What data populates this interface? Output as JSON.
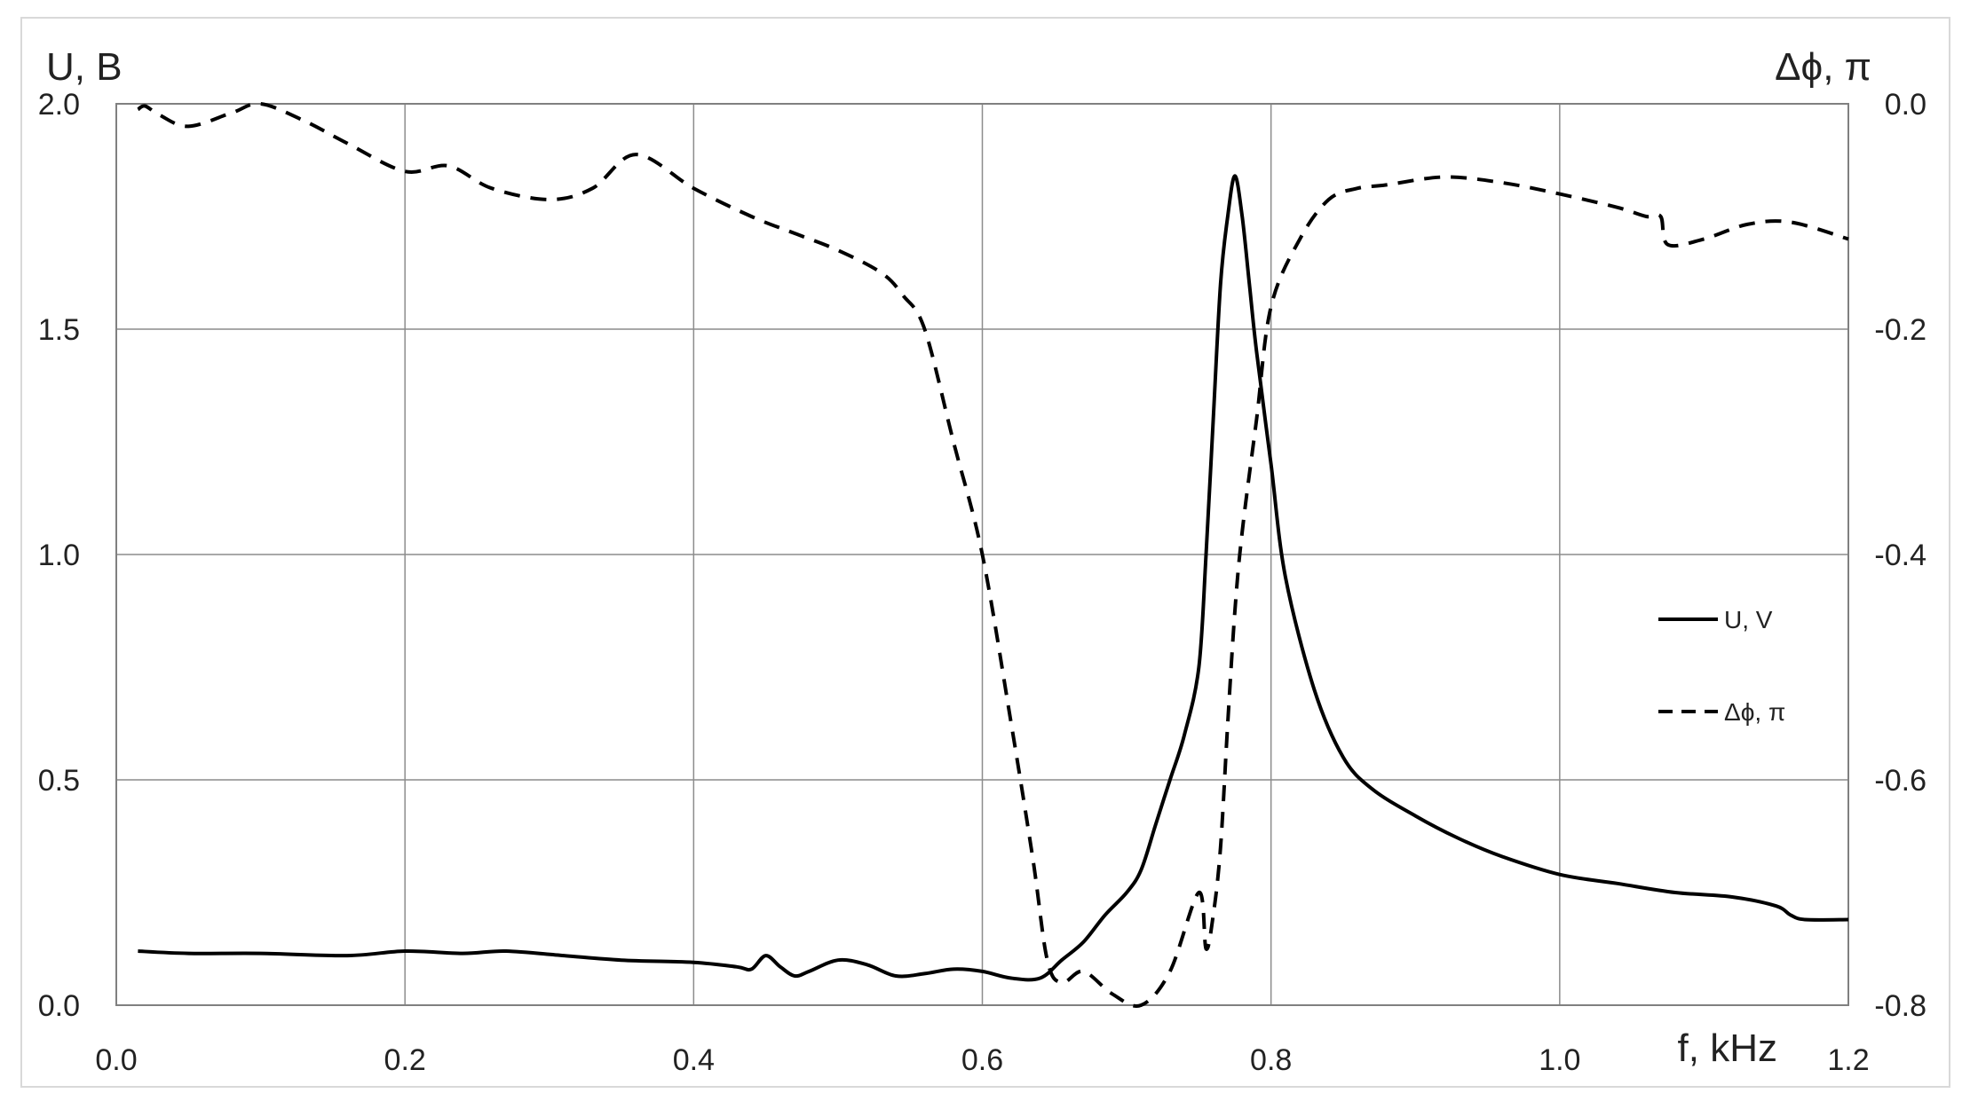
{
  "chart_data": {
    "type": "line",
    "title": "",
    "xlabel": "f, kHz",
    "ylabel_left": "U, B",
    "ylabel_right": "Δϕ, π",
    "xlim": [
      0.0,
      1.2
    ],
    "ylim_left": [
      0.0,
      2.0
    ],
    "ylim_right": [
      -0.8,
      0.0
    ],
    "x_ticks": [
      "0.0",
      "0.2",
      "0.4",
      "0.6",
      "0.8",
      "1.0",
      "1.2"
    ],
    "y_left_ticks": [
      "0.0",
      "0.5",
      "1.0",
      "1.5",
      "2.0"
    ],
    "y_right_ticks": [
      "-0.8",
      "-0.6",
      "-0.4",
      "-0.2",
      "0.0"
    ],
    "grid": true,
    "legend_position": "right-middle",
    "series": [
      {
        "name": "U, V",
        "axis": "left",
        "style": "solid",
        "color": "#000000",
        "x": [
          0.015,
          0.05,
          0.1,
          0.16,
          0.2,
          0.24,
          0.27,
          0.31,
          0.35,
          0.4,
          0.43,
          0.44,
          0.45,
          0.46,
          0.47,
          0.48,
          0.5,
          0.52,
          0.54,
          0.56,
          0.58,
          0.6,
          0.62,
          0.64,
          0.655,
          0.67,
          0.685,
          0.7,
          0.71,
          0.72,
          0.73,
          0.74,
          0.75,
          0.755,
          0.76,
          0.765,
          0.77,
          0.775,
          0.78,
          0.785,
          0.79,
          0.8,
          0.81,
          0.83,
          0.85,
          0.87,
          0.9,
          0.93,
          0.96,
          1.0,
          1.04,
          1.08,
          1.12,
          1.15,
          1.16,
          1.17,
          1.2
        ],
        "y": [
          0.12,
          0.115,
          0.115,
          0.11,
          0.12,
          0.115,
          0.12,
          0.11,
          0.1,
          0.095,
          0.085,
          0.08,
          0.11,
          0.085,
          0.065,
          0.075,
          0.1,
          0.09,
          0.065,
          0.07,
          0.08,
          0.075,
          0.06,
          0.06,
          0.1,
          0.14,
          0.2,
          0.25,
          0.3,
          0.4,
          0.5,
          0.6,
          0.75,
          1.0,
          1.3,
          1.6,
          1.75,
          1.84,
          1.75,
          1.6,
          1.45,
          1.2,
          0.95,
          0.7,
          0.55,
          0.48,
          0.42,
          0.37,
          0.33,
          0.29,
          0.27,
          0.25,
          0.24,
          0.22,
          0.2,
          0.19,
          0.19
        ]
      },
      {
        "name": "Δϕ, π",
        "axis": "right",
        "style": "dashed",
        "color": "#000000",
        "x": [
          0.015,
          0.02,
          0.03,
          0.05,
          0.08,
          0.1,
          0.13,
          0.16,
          0.2,
          0.23,
          0.26,
          0.3,
          0.33,
          0.36,
          0.4,
          0.44,
          0.47,
          0.5,
          0.53,
          0.545,
          0.56,
          0.58,
          0.6,
          0.62,
          0.635,
          0.645,
          0.655,
          0.67,
          0.69,
          0.71,
          0.73,
          0.75,
          0.755,
          0.76,
          0.765,
          0.77,
          0.775,
          0.78,
          0.79,
          0.8,
          0.82,
          0.84,
          0.86,
          0.88,
          0.92,
          0.96,
          1.0,
          1.04,
          1.06,
          1.07,
          1.075,
          1.1,
          1.13,
          1.16,
          1.2
        ],
        "y": [
          -0.005,
          -0.002,
          -0.01,
          -0.02,
          -0.008,
          0.0,
          -0.015,
          -0.035,
          -0.06,
          -0.055,
          -0.075,
          -0.085,
          -0.075,
          -0.045,
          -0.075,
          -0.1,
          -0.115,
          -0.13,
          -0.15,
          -0.17,
          -0.2,
          -0.3,
          -0.4,
          -0.55,
          -0.67,
          -0.76,
          -0.78,
          -0.77,
          -0.79,
          -0.8,
          -0.77,
          -0.7,
          -0.75,
          -0.72,
          -0.66,
          -0.55,
          -0.45,
          -0.38,
          -0.28,
          -0.18,
          -0.12,
          -0.085,
          -0.075,
          -0.072,
          -0.065,
          -0.07,
          -0.08,
          -0.092,
          -0.1,
          -0.1,
          -0.125,
          -0.12,
          -0.107,
          -0.105,
          -0.12
        ]
      }
    ]
  }
}
